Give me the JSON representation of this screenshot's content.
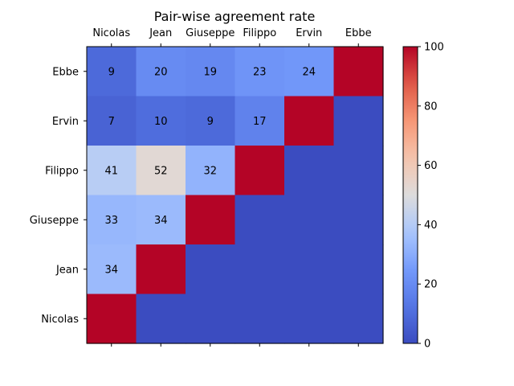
{
  "chart_data": {
    "type": "heatmap",
    "title": "Pair-wise agreement rate",
    "columns": [
      "Nicolas",
      "Jean",
      "Giuseppe",
      "Filippo",
      "Ervin",
      "Ebbe"
    ],
    "rows": [
      "Ebbe",
      "Ervin",
      "Filippo",
      "Giuseppe",
      "Jean",
      "Nicolas"
    ],
    "values": [
      [
        9,
        20,
        19,
        23,
        24,
        100
      ],
      [
        7,
        10,
        9,
        17,
        100,
        0
      ],
      [
        41,
        52,
        32,
        100,
        0,
        0
      ],
      [
        33,
        34,
        100,
        0,
        0,
        0
      ],
      [
        34,
        100,
        0,
        0,
        0,
        0
      ],
      [
        100,
        0,
        0,
        0,
        0,
        0
      ]
    ],
    "labels": [
      [
        "9",
        "20",
        "19",
        "23",
        "24",
        ""
      ],
      [
        "7",
        "10",
        "9",
        "17",
        "",
        ""
      ],
      [
        "41",
        "52",
        "32",
        "",
        "",
        ""
      ],
      [
        "33",
        "34",
        "",
        "",
        "",
        ""
      ],
      [
        "34",
        "",
        "",
        "",
        "",
        ""
      ],
      [
        "",
        "",
        "",
        "",
        "",
        ""
      ]
    ],
    "colorscale": "coolwarm",
    "vmin": 0,
    "vmax": 100,
    "colorbar_ticks": [
      0,
      20,
      40,
      60,
      80,
      100
    ],
    "x_axis_position": "top",
    "grid": false
  }
}
